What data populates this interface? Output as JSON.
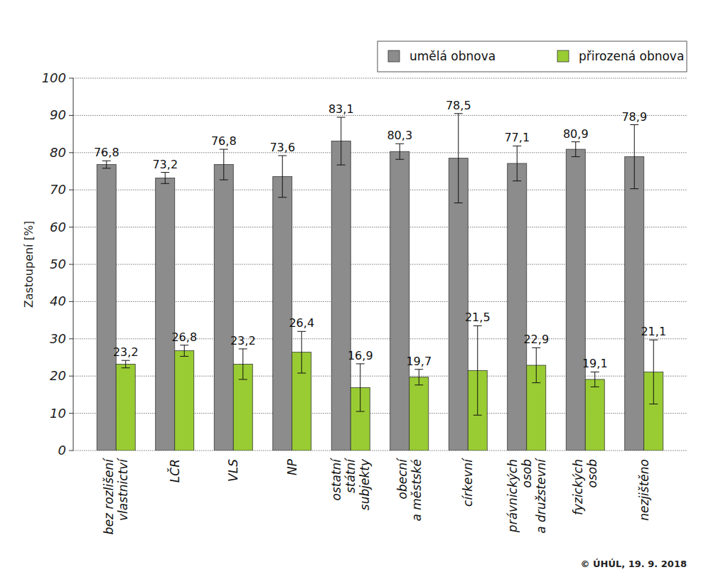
{
  "chart_data": {
    "type": "bar",
    "y_label": "Zastoupení [%]",
    "categories": [
      "bez rozlišení\nvlastnictví",
      "LČR",
      "VLS",
      "NP",
      "ostatní\nstátní\nsubjekty",
      "obecní\na městské",
      "církevní",
      "právnických\nosob\na družstevní",
      "fyzických\nosob",
      "nezjištěno"
    ],
    "series": [
      {
        "name": "umělá obnova",
        "color": "#8c8c8c",
        "values": [
          76.8,
          73.2,
          76.8,
          73.6,
          83.1,
          80.3,
          78.5,
          77.1,
          80.9,
          78.9
        ],
        "value_labels": [
          "76,8",
          "73,2",
          "76,8",
          "73,6",
          "83,1",
          "80,3",
          "78,5",
          "77,1",
          "80,9",
          "78,9"
        ],
        "errors": [
          1.0,
          1.5,
          4.1,
          5.6,
          6.4,
          2.1,
          12.0,
          4.7,
          2.0,
          8.6
        ]
      },
      {
        "name": "přirozená obnova",
        "color": "#99cc33",
        "values": [
          23.2,
          26.8,
          23.2,
          26.4,
          16.9,
          19.7,
          21.5,
          22.9,
          19.1,
          21.1
        ],
        "value_labels": [
          "23,2",
          "26,8",
          "23,2",
          "26,4",
          "16,9",
          "19,7",
          "21,5",
          "22,9",
          "19,1",
          "21,1"
        ],
        "errors": [
          1.0,
          1.5,
          4.1,
          5.6,
          6.4,
          2.1,
          12.0,
          4.7,
          2.0,
          8.6
        ]
      }
    ],
    "ylim": [
      0,
      100
    ],
    "yticks": [
      0,
      10,
      20,
      30,
      40,
      50,
      60,
      70,
      80,
      90,
      100
    ],
    "grid": true,
    "legend": "top-right",
    "data_labels": true,
    "annotations": [
      "© ÚHÚL, 19. 9. 2018"
    ]
  }
}
